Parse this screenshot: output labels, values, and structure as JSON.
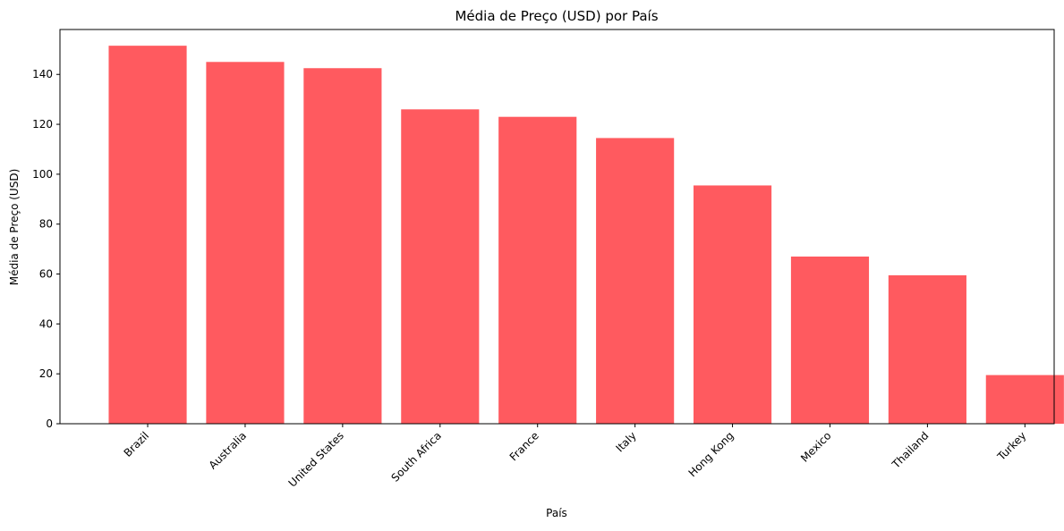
{
  "chart_data": {
    "type": "bar",
    "title": "Média de Preço (USD) por País",
    "xlabel": "País",
    "ylabel": "Média de Preço (USD)",
    "categories": [
      "Brazil",
      "Australia",
      "United States",
      "South Africa",
      "France",
      "Italy",
      "Hong Kong",
      "Mexico",
      "Thailand",
      "Turkey"
    ],
    "values": [
      151.5,
      145.0,
      142.5,
      126.0,
      123.0,
      114.5,
      95.5,
      67.0,
      59.5,
      19.5
    ],
    "ylim": [
      0,
      158
    ],
    "yticks": [
      0,
      20,
      40,
      60,
      80,
      100,
      120,
      140
    ],
    "grid": false,
    "bar_color": "#ff5a5f"
  }
}
